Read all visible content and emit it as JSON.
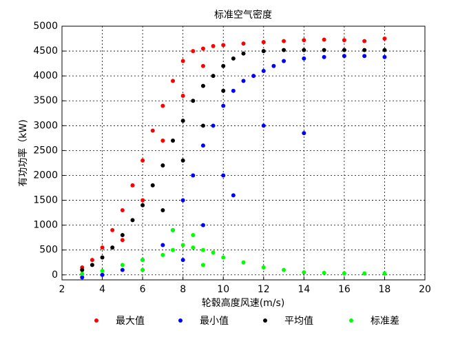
{
  "chart_data": {
    "type": "scatter",
    "title": "标准空气密度",
    "x_label": "轮毂高度风速(m/s)",
    "y_label": "有功功率（kW)",
    "xlim": [
      2,
      20
    ],
    "xticks": [
      2,
      4,
      6,
      8,
      10,
      12,
      14,
      16,
      18,
      20
    ],
    "ylim": [
      -100,
      5000
    ],
    "yticks": [
      0,
      500,
      1000,
      1500,
      2000,
      2500,
      3000,
      3500,
      4000,
      4500,
      5000
    ],
    "grid": true,
    "legend": "bottom",
    "series": [
      {
        "name": "最大值",
        "color": "#ff0000",
        "x": [
          3,
          3.5,
          4,
          4.5,
          5,
          5.5,
          6,
          6.5,
          7,
          7.5,
          8,
          8.5,
          9,
          9.5,
          10,
          11,
          12,
          13,
          14,
          15,
          16,
          17,
          18,
          5,
          6,
          7,
          8,
          9
        ],
        "values": [
          150,
          300,
          550,
          900,
          1300,
          1800,
          2300,
          2900,
          3400,
          3900,
          4300,
          4500,
          4550,
          4600,
          4620,
          4650,
          4680,
          4700,
          4720,
          4730,
          4720,
          4700,
          4750,
          700,
          1500,
          2700,
          3600,
          4200
        ]
      },
      {
        "name": "最小值",
        "color": "#0000ff",
        "x": [
          3,
          4,
          5,
          6,
          7,
          7.5,
          8,
          8.5,
          9,
          9.5,
          10,
          10.5,
          11,
          11.5,
          12,
          12.5,
          13,
          14,
          15,
          16,
          17,
          18,
          8,
          9,
          10,
          12,
          14,
          10.5
        ],
        "values": [
          -50,
          0,
          100,
          300,
          600,
          900,
          1500,
          2000,
          2600,
          3000,
          3400,
          3700,
          3900,
          4000,
          4100,
          4200,
          4300,
          4350,
          4380,
          4400,
          4400,
          4380,
          300,
          1000,
          2000,
          3000,
          2850,
          1600
        ]
      },
      {
        "name": "平均值",
        "color": "#000000",
        "x": [
          3,
          3.5,
          4,
          4.5,
          5,
          5.5,
          6,
          6.5,
          7,
          7.5,
          8,
          8.5,
          9,
          9.5,
          10,
          10.5,
          11,
          12,
          13,
          14,
          15,
          16,
          17,
          18,
          7,
          8,
          9,
          10
        ],
        "values": [
          100,
          200,
          350,
          550,
          800,
          1100,
          1400,
          1800,
          2200,
          2700,
          3100,
          3500,
          3800,
          4000,
          4200,
          4350,
          4450,
          4500,
          4520,
          4520,
          4520,
          4520,
          4520,
          4520,
          1300,
          2300,
          3000,
          3700
        ]
      },
      {
        "name": "标准差",
        "color": "#00ff00",
        "x": [
          3,
          4,
          5,
          6,
          7,
          7.5,
          8,
          8.5,
          9,
          9.5,
          10,
          11,
          12,
          13,
          14,
          15,
          16,
          17,
          18,
          7.5,
          8.5,
          9,
          6
        ],
        "values": [
          20,
          80,
          200,
          300,
          400,
          500,
          600,
          550,
          500,
          450,
          350,
          250,
          150,
          100,
          50,
          40,
          30,
          30,
          30,
          900,
          800,
          200,
          100
        ]
      }
    ]
  }
}
